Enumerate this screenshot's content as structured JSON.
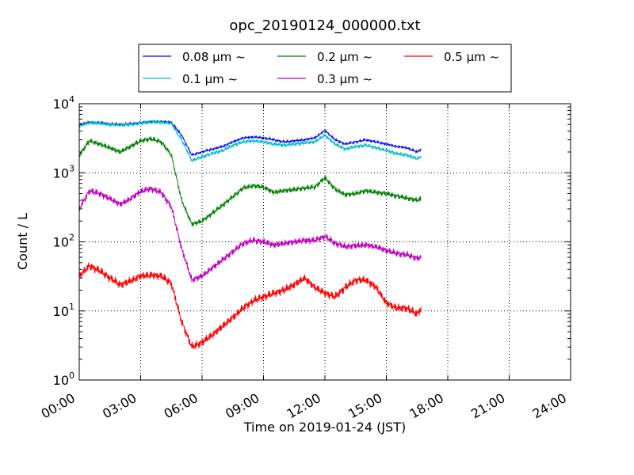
{
  "chart_data": {
    "type": "line",
    "title": "opc_20190124_000000.txt",
    "xlabel": "Time on 2019-01-24 (JST)",
    "ylabel": "Count / L",
    "yscale": "log",
    "ylim": [
      1,
      10000
    ],
    "xlim": [
      0,
      24
    ],
    "grid": true,
    "legend_position": "top-center, outside plot, 3 columns",
    "x_tick_labels": [
      "00:00",
      "03:00",
      "06:00",
      "09:00",
      "12:00",
      "15:00",
      "18:00",
      "21:00",
      "24:00"
    ],
    "y_tick_labels": [
      {
        "base": "10",
        "exp": "0"
      },
      {
        "base": "10",
        "exp": "1"
      },
      {
        "base": "10",
        "exp": "2"
      },
      {
        "base": "10",
        "exp": "3"
      },
      {
        "base": "10",
        "exp": "4"
      }
    ],
    "x": [
      0,
      0.5,
      1,
      1.5,
      2,
      2.5,
      3,
      3.5,
      4,
      4.5,
      5,
      5.5,
      6,
      6.5,
      7,
      7.5,
      8,
      8.5,
      9,
      9.5,
      10,
      10.5,
      11,
      11.5,
      12,
      12.5,
      13,
      13.5,
      14,
      14.5,
      15,
      15.5,
      16,
      16.5,
      16.7
    ],
    "series": [
      {
        "name": "0.08 μm ~",
        "color": "#0000ff",
        "values": [
          5000,
          5400,
          5300,
          5100,
          5000,
          5100,
          5300,
          5500,
          5500,
          5400,
          3500,
          1800,
          2000,
          2200,
          2400,
          2800,
          3200,
          3300,
          3200,
          3000,
          2800,
          2900,
          3000,
          3200,
          4100,
          3000,
          2600,
          2800,
          3000,
          2800,
          2600,
          2400,
          2300,
          2000,
          2200
        ]
      },
      {
        "name": "0.1 μm ~",
        "color": "#00bfbf",
        "values": [
          4800,
          5300,
          5200,
          5000,
          4900,
          5000,
          5200,
          5400,
          5400,
          5200,
          3000,
          1500,
          1700,
          1900,
          2100,
          2500,
          2800,
          2900,
          2800,
          2600,
          2500,
          2600,
          2700,
          2800,
          3500,
          2600,
          2200,
          2400,
          2500,
          2300,
          2100,
          1900,
          1800,
          1600,
          1700
        ]
      },
      {
        "name": "0.2 μm ~",
        "color": "#008000",
        "values": [
          1800,
          2900,
          2600,
          2300,
          2000,
          2400,
          2900,
          3100,
          2800,
          1800,
          400,
          180,
          200,
          260,
          340,
          450,
          600,
          650,
          620,
          520,
          550,
          570,
          600,
          620,
          850,
          580,
          480,
          500,
          550,
          520,
          500,
          460,
          430,
          400,
          420
        ]
      },
      {
        "name": "0.3 μm ~",
        "color": "#bf00bf",
        "values": [
          300,
          550,
          500,
          420,
          350,
          420,
          540,
          590,
          520,
          320,
          80,
          28,
          32,
          42,
          55,
          72,
          95,
          105,
          100,
          90,
          95,
          100,
          105,
          105,
          120,
          95,
          85,
          88,
          90,
          85,
          75,
          68,
          65,
          58,
          60
        ]
      },
      {
        "name": "0.5 μm ~",
        "color": "#ff0000",
        "values": [
          32,
          45,
          38,
          30,
          24,
          27,
          32,
          33,
          32,
          25,
          7,
          3,
          3.5,
          4.5,
          6,
          8,
          11,
          14,
          16,
          18,
          20,
          24,
          30,
          22,
          18,
          16,
          22,
          28,
          28,
          22,
          13,
          11,
          11,
          9,
          11
        ]
      }
    ]
  }
}
